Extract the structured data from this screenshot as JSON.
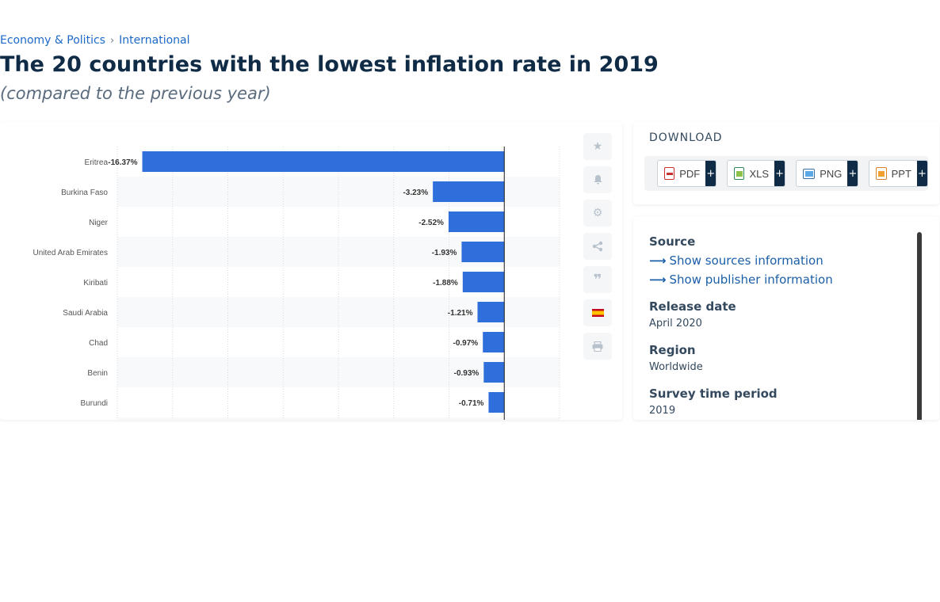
{
  "breadcrumb": {
    "items": [
      "Economy & Politics",
      "International"
    ],
    "separator": "›"
  },
  "title": "The 20 countries with the lowest inflation rate in 2019",
  "subtitle": "(compared to the previous year)",
  "tools": {
    "icons": [
      "star-icon",
      "bell-icon",
      "gear-icon",
      "share-icon",
      "quote-icon",
      "spain-flag-icon",
      "print-icon"
    ]
  },
  "download": {
    "heading": "DOWNLOAD",
    "buttons": [
      {
        "label": "PDF",
        "icon": "pdf-icon",
        "plus": "+"
      },
      {
        "label": "XLS",
        "icon": "xls-icon",
        "plus": "+"
      },
      {
        "label": "PNG",
        "icon": "png-icon",
        "plus": "+"
      },
      {
        "label": "PPT",
        "icon": "ppt-icon",
        "plus": "+"
      }
    ]
  },
  "info": {
    "source_heading": "Source",
    "show_sources": "Show sources information",
    "show_publisher": "Show publisher information",
    "release_heading": "Release date",
    "release_value": "April 2020",
    "region_heading": "Region",
    "region_value": "Worldwide",
    "period_heading": "Survey time period",
    "period_value": "2019"
  },
  "colors": {
    "bar": "#2f6fdc",
    "accent": "#0f2b46",
    "link": "#1b6ac9"
  },
  "chart_data": {
    "type": "bar",
    "orientation": "horizontal",
    "categories": [
      "Eritrea",
      "Burkina Faso",
      "Niger",
      "United Arab Emirates",
      "Kiribati",
      "Saudi Arabia",
      "Chad",
      "Benin",
      "Burundi"
    ],
    "values": [
      -16.37,
      -3.23,
      -2.52,
      -1.93,
      -1.88,
      -1.21,
      -0.97,
      -0.93,
      -0.71
    ],
    "labels": [
      "-16.37%",
      "-3.23%",
      "-2.52%",
      "-1.93%",
      "-1.88%",
      "-1.21%",
      "-0.97%",
      "-0.93%",
      "-0.71%"
    ],
    "xlim": [
      -17.5,
      2.5
    ],
    "grid": true,
    "title": "",
    "xlabel": "",
    "ylabel": ""
  }
}
